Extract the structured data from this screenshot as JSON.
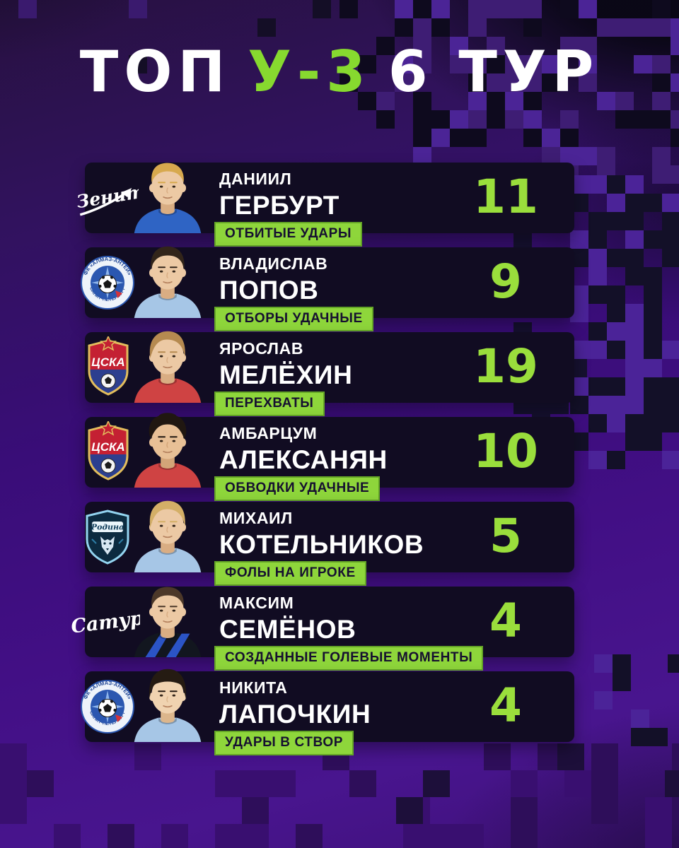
{
  "poster": {
    "title": {
      "part1": "ТОП",
      "part2": "У-3",
      "part3": "6 ТУР"
    }
  },
  "clubs": {
    "zenit": "Зенит",
    "cska": "ЦСКА",
    "rodina": "Родина",
    "saturn": "Сатурн",
    "almaz_top": "ФК «АЛМАЗ-АНТЕЙ»",
    "almaz_bottom": "САНКТ-ПЕТЕРБУРГ"
  },
  "colors": {
    "accent_green": "#8ed63b",
    "value_green": "#9ade3c",
    "title_green": "#87d92f",
    "panel_dark": "#110c22",
    "background_purple": "#430f86",
    "badge_text": "#161030"
  },
  "rows": [
    {
      "club": "Зенит",
      "first_name": "ДАНИИЛ",
      "last_name": "ГЕРБУРТ",
      "stat_label": "ОТБИТЫЕ УДАРЫ",
      "value": 11,
      "avatar": {
        "hair_style": "short",
        "hair": "#d7a94e",
        "jersey": "#2f64c4",
        "jersey_style": "plain",
        "jersey_accent": "#2b54c6",
        "skin": "#ecc9a4",
        "skin_shadow": "#d9ad83"
      }
    },
    {
      "club": "Алмаз-Антей",
      "first_name": "ВЛАДИСЛАВ",
      "last_name": "ПОПОВ",
      "stat_label": "ОТБОРЫ УДАЧНЫЕ",
      "value": 9,
      "avatar": {
        "hair_style": "fringe",
        "hair": "#32251a",
        "jersey": "#a6c6e6",
        "jersey_style": "plain",
        "jersey_accent": "#2b54c6",
        "skin": "#ecc9a4",
        "skin_shadow": "#d9ad83"
      }
    },
    {
      "club": "ЦСКА",
      "first_name": "ЯРОСЛАВ",
      "last_name": "МЕЛЁХИН",
      "stat_label": "ПЕРЕХВАТЫ",
      "value": 19,
      "avatar": {
        "hair_style": "swoop",
        "hair": "#b68a50",
        "jersey": "#cf4343",
        "jersey_style": "plain",
        "jersey_accent": "#2b54c6",
        "skin": "#ecc9a4",
        "skin_shadow": "#d9ad83"
      }
    },
    {
      "club": "ЦСКА",
      "first_name": "АМБАРЦУМ",
      "last_name": "АЛЕКСАНЯН",
      "stat_label": "ОБВОДКИ УДАЧНЫЕ",
      "value": 10,
      "avatar": {
        "hair_style": "curly",
        "hair": "#201711",
        "jersey": "#cf4343",
        "jersey_style": "plain",
        "jersey_accent": "#2b54c6",
        "skin": "#e8c096",
        "skin_shadow": "#d3a578"
      }
    },
    {
      "club": "Родина",
      "first_name": "МИХАИЛ",
      "last_name": "КОТЕЛЬНИКОВ",
      "stat_label": "ФОЛЫ НА ИГРОКЕ",
      "value": 5,
      "avatar": {
        "hair_style": "swoop",
        "hair": "#d4af67",
        "jersey": "#a6c6e6",
        "jersey_style": "plain",
        "jersey_accent": "#2b54c6",
        "skin": "#ecc9a4",
        "skin_shadow": "#d9ad83"
      }
    },
    {
      "club": "Сатурн",
      "first_name": "МАКСИМ",
      "last_name": "СЕМЁНОВ",
      "stat_label": "СОЗДАННЫЕ ГОЛЕВЫЕ МОМЕНТЫ",
      "value": 4,
      "avatar": {
        "hair_style": "short",
        "hair": "#4c3829",
        "jersey": "#12161f",
        "jersey_style": "stripes",
        "jersey_accent": "#2b54c6",
        "skin": "#ecc9a4",
        "skin_shadow": "#d9ad83"
      }
    },
    {
      "club": "Алмаз-Антей",
      "first_name": "НИКИТА",
      "last_name": "ЛАПОЧКИН",
      "stat_label": "УДАРЫ В СТВОР",
      "value": 4,
      "avatar": {
        "hair_style": "mop",
        "hair": "#251b12",
        "jersey": "#a6c6e6",
        "jersey_style": "plain",
        "jersey_accent": "#2b54c6",
        "skin": "#f0d3b0",
        "skin_shadow": "#dcb68c"
      }
    }
  ]
}
